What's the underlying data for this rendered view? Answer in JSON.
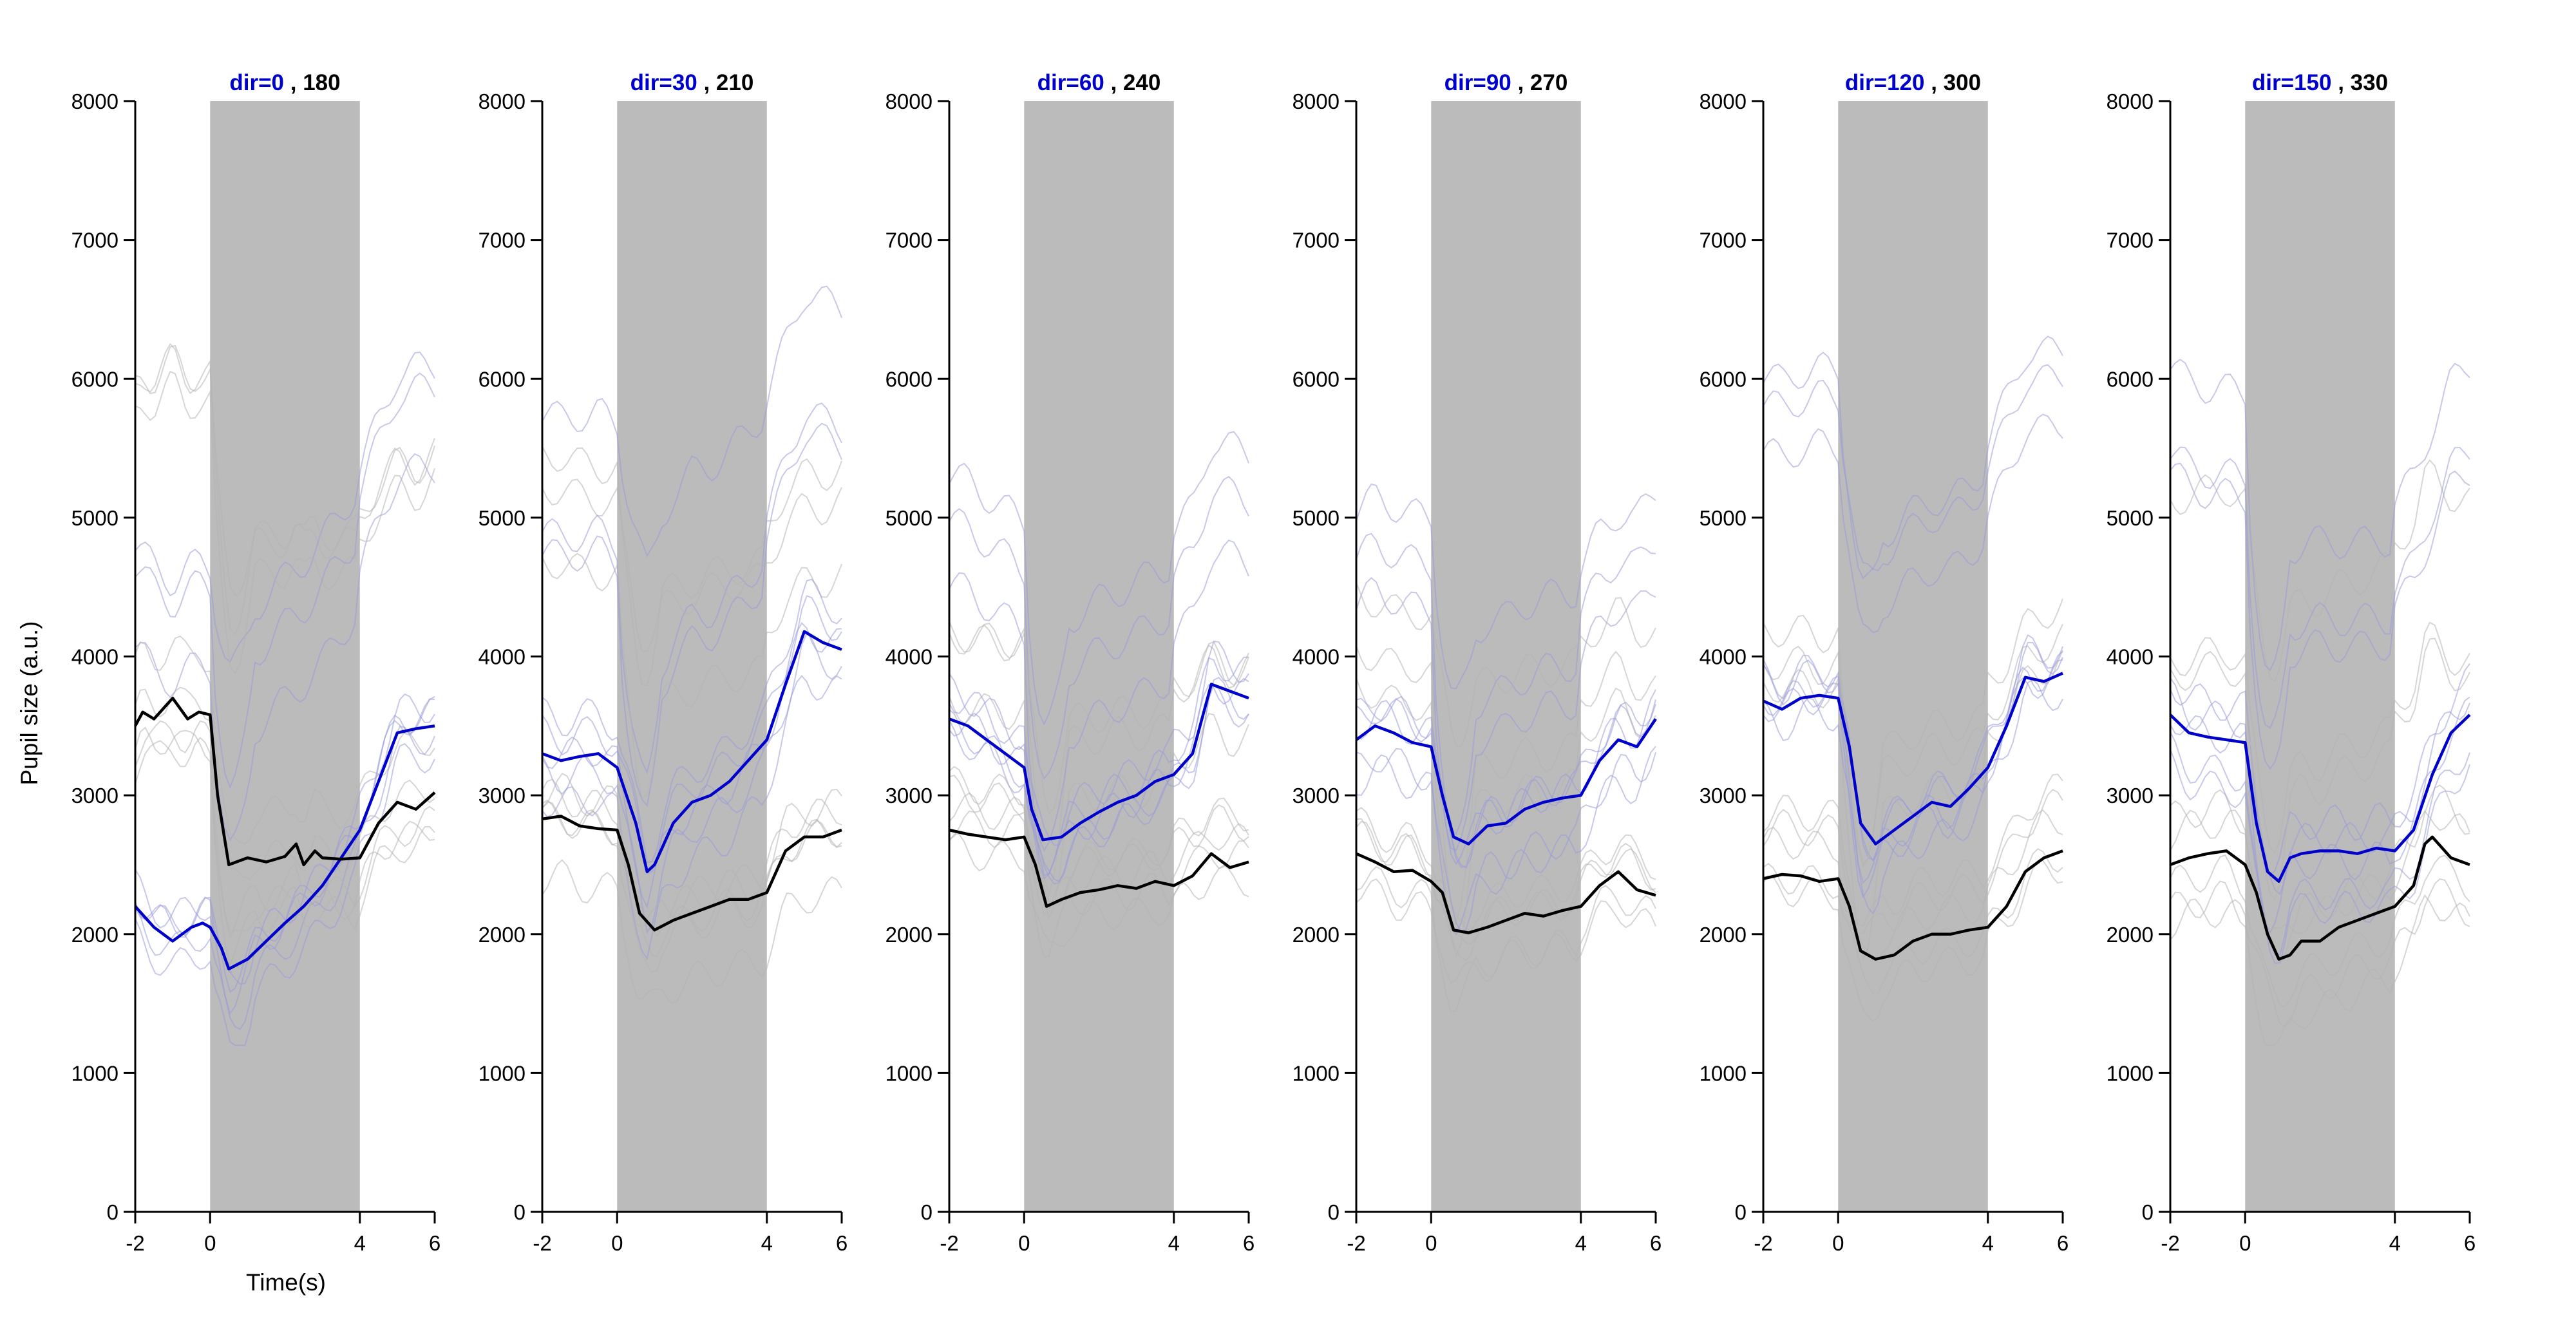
{
  "figure": {
    "ylabel": "Pupil size (a.u.)",
    "xlabel": "Time(s)",
    "colors": {
      "primary": "#0000cc",
      "secondary": "#000000",
      "stimulus": "#bbbbbb",
      "trial_primary": "#9a9ad8",
      "trial_secondary": "#b4b4b4"
    }
  },
  "chart_data": [
    {
      "type": "line",
      "title_primary": "dir=0",
      "title_secondary": ", 180",
      "xlim": [
        -2,
        6
      ],
      "ylim": [
        0,
        8000
      ],
      "xticks": [
        -2,
        0,
        4,
        6
      ],
      "yticks": [
        0,
        1000,
        2000,
        3000,
        4000,
        5000,
        6000,
        7000,
        8000
      ],
      "stimulus_window": [
        0,
        4
      ],
      "series": [
        {
          "color": "primary",
          "x": [
            -2,
            -1.5,
            -1,
            -0.5,
            -0.2,
            0,
            0.3,
            0.5,
            1,
            1.5,
            2,
            2.5,
            3,
            3.5,
            4,
            4.5,
            5,
            5.5,
            6
          ],
          "y": [
            2200,
            2050,
            1950,
            2050,
            2080,
            2050,
            1900,
            1750,
            1820,
            1950,
            2080,
            2200,
            2350,
            2550,
            2750,
            3100,
            3450,
            3480,
            3500
          ]
        },
        {
          "color": "secondary",
          "x": [
            -2,
            -1.8,
            -1.5,
            -1,
            -0.6,
            -0.3,
            0,
            0.2,
            0.5,
            1,
            1.5,
            2,
            2.3,
            2.5,
            2.8,
            3,
            3.5,
            4,
            4.5,
            5,
            5.5,
            6
          ],
          "y": [
            3500,
            3600,
            3550,
            3700,
            3550,
            3600,
            3580,
            3000,
            2500,
            2550,
            2520,
            2560,
            2650,
            2500,
            2600,
            2550,
            2540,
            2550,
            2800,
            2950,
            2900,
            3020
          ]
        }
      ]
    },
    {
      "type": "line",
      "title_primary": "dir=30",
      "title_secondary": ", 210",
      "xlim": [
        -2,
        6
      ],
      "ylim": [
        0,
        8000
      ],
      "xticks": [
        -2,
        0,
        4,
        6
      ],
      "yticks": [
        0,
        1000,
        2000,
        3000,
        4000,
        5000,
        6000,
        7000,
        8000
      ],
      "stimulus_window": [
        0,
        4
      ],
      "series": [
        {
          "color": "primary",
          "x": [
            -2,
            -1.5,
            -1,
            -0.5,
            0,
            0.5,
            0.8,
            1,
            1.5,
            2,
            2.5,
            3,
            3.5,
            4,
            4.5,
            5,
            5.5,
            6
          ],
          "y": [
            3300,
            3250,
            3280,
            3300,
            3200,
            2800,
            2450,
            2500,
            2800,
            2950,
            3000,
            3100,
            3250,
            3400,
            3800,
            4180,
            4100,
            4050
          ]
        },
        {
          "color": "secondary",
          "x": [
            -2,
            -1.5,
            -1,
            -0.5,
            0,
            0.3,
            0.6,
            1,
            1.5,
            2,
            2.5,
            3,
            3.5,
            4,
            4.5,
            5,
            5.5,
            6
          ],
          "y": [
            2830,
            2850,
            2780,
            2760,
            2750,
            2500,
            2150,
            2030,
            2100,
            2150,
            2200,
            2250,
            2250,
            2300,
            2600,
            2700,
            2700,
            2750
          ]
        }
      ]
    },
    {
      "type": "line",
      "title_primary": "dir=60",
      "title_secondary": ", 240",
      "xlim": [
        -2,
        6
      ],
      "ylim": [
        0,
        8000
      ],
      "xticks": [
        -2,
        0,
        4,
        6
      ],
      "yticks": [
        0,
        1000,
        2000,
        3000,
        4000,
        5000,
        6000,
        7000,
        8000
      ],
      "stimulus_window": [
        0,
        4
      ],
      "series": [
        {
          "color": "primary",
          "x": [
            -2,
            -1.5,
            -1,
            -0.5,
            0,
            0.2,
            0.5,
            1,
            1.5,
            2,
            2.5,
            3,
            3.5,
            4,
            4.5,
            5,
            5.5,
            6
          ],
          "y": [
            3550,
            3500,
            3400,
            3300,
            3200,
            2900,
            2680,
            2700,
            2800,
            2880,
            2950,
            3000,
            3100,
            3150,
            3300,
            3800,
            3750,
            3700
          ]
        },
        {
          "color": "secondary",
          "x": [
            -2,
            -1.5,
            -1,
            -0.5,
            0,
            0.3,
            0.6,
            1,
            1.5,
            2,
            2.5,
            3,
            3.5,
            4,
            4.5,
            5,
            5.5,
            6
          ],
          "y": [
            2750,
            2720,
            2700,
            2680,
            2700,
            2500,
            2200,
            2250,
            2300,
            2320,
            2350,
            2330,
            2380,
            2350,
            2420,
            2580,
            2480,
            2520
          ]
        }
      ]
    },
    {
      "type": "line",
      "title_primary": "dir=90",
      "title_secondary": ", 270",
      "xlim": [
        -2,
        6
      ],
      "ylim": [
        0,
        8000
      ],
      "xticks": [
        -2,
        0,
        4,
        6
      ],
      "yticks": [
        0,
        1000,
        2000,
        3000,
        4000,
        5000,
        6000,
        7000,
        8000
      ],
      "stimulus_window": [
        0,
        4
      ],
      "series": [
        {
          "color": "primary",
          "x": [
            -2,
            -1.5,
            -1,
            -0.5,
            0,
            0.3,
            0.6,
            1,
            1.5,
            2,
            2.5,
            3,
            3.5,
            4,
            4.5,
            5,
            5.5,
            6
          ],
          "y": [
            3400,
            3500,
            3450,
            3380,
            3350,
            3000,
            2700,
            2650,
            2780,
            2800,
            2900,
            2950,
            2980,
            3000,
            3250,
            3400,
            3350,
            3550
          ]
        },
        {
          "color": "secondary",
          "x": [
            -2,
            -1.5,
            -1,
            -0.5,
            0,
            0.3,
            0.6,
            1,
            1.5,
            2,
            2.5,
            3,
            3.5,
            4,
            4.5,
            5,
            5.5,
            6
          ],
          "y": [
            2580,
            2520,
            2450,
            2460,
            2380,
            2300,
            2030,
            2010,
            2050,
            2100,
            2150,
            2130,
            2170,
            2200,
            2350,
            2450,
            2320,
            2280
          ]
        }
      ]
    },
    {
      "type": "line",
      "title_primary": "dir=120",
      "title_secondary": ", 300",
      "xlim": [
        -2,
        6
      ],
      "ylim": [
        0,
        8000
      ],
      "xticks": [
        -2,
        0,
        4,
        6
      ],
      "yticks": [
        0,
        1000,
        2000,
        3000,
        4000,
        5000,
        6000,
        7000,
        8000
      ],
      "stimulus_window": [
        0,
        4
      ],
      "series": [
        {
          "color": "primary",
          "x": [
            -2,
            -1.5,
            -1,
            -0.5,
            0,
            0.3,
            0.6,
            1,
            1.5,
            2,
            2.5,
            3,
            3.5,
            4,
            4.5,
            5,
            5.5,
            6
          ],
          "y": [
            3680,
            3620,
            3700,
            3720,
            3700,
            3350,
            2800,
            2650,
            2750,
            2850,
            2950,
            2920,
            3050,
            3200,
            3500,
            3850,
            3820,
            3880
          ]
        },
        {
          "color": "secondary",
          "x": [
            -2,
            -1.5,
            -1,
            -0.5,
            0,
            0.3,
            0.6,
            1,
            1.5,
            2,
            2.5,
            3,
            3.5,
            4,
            4.5,
            5,
            5.5,
            6
          ],
          "y": [
            2400,
            2430,
            2420,
            2380,
            2400,
            2200,
            1880,
            1820,
            1850,
            1950,
            2000,
            2000,
            2030,
            2050,
            2200,
            2450,
            2550,
            2600
          ]
        }
      ]
    },
    {
      "type": "line",
      "title_primary": "dir=150",
      "title_secondary": ", 330",
      "xlim": [
        -2,
        6
      ],
      "ylim": [
        0,
        8000
      ],
      "xticks": [
        -2,
        0,
        4,
        6
      ],
      "yticks": [
        0,
        1000,
        2000,
        3000,
        4000,
        5000,
        6000,
        7000,
        8000
      ],
      "stimulus_window": [
        0,
        4
      ],
      "series": [
        {
          "color": "primary",
          "x": [
            -2,
            -1.5,
            -1,
            -0.5,
            0,
            0.3,
            0.6,
            0.9,
            1.2,
            1.5,
            2,
            2.5,
            3,
            3.5,
            4,
            4.5,
            5,
            5.5,
            6
          ],
          "y": [
            3580,
            3450,
            3420,
            3400,
            3380,
            2800,
            2450,
            2380,
            2550,
            2580,
            2600,
            2600,
            2580,
            2620,
            2600,
            2750,
            3150,
            3450,
            3580
          ]
        },
        {
          "color": "secondary",
          "x": [
            -2,
            -1.5,
            -1,
            -0.5,
            0,
            0.3,
            0.6,
            0.9,
            1.2,
            1.5,
            2,
            2.5,
            3,
            3.5,
            4,
            4.5,
            4.8,
            5,
            5.5,
            6
          ],
          "y": [
            2500,
            2550,
            2580,
            2600,
            2500,
            2300,
            2000,
            1820,
            1850,
            1950,
            1950,
            2050,
            2100,
            2150,
            2200,
            2350,
            2650,
            2700,
            2550,
            2500
          ]
        }
      ]
    }
  ]
}
